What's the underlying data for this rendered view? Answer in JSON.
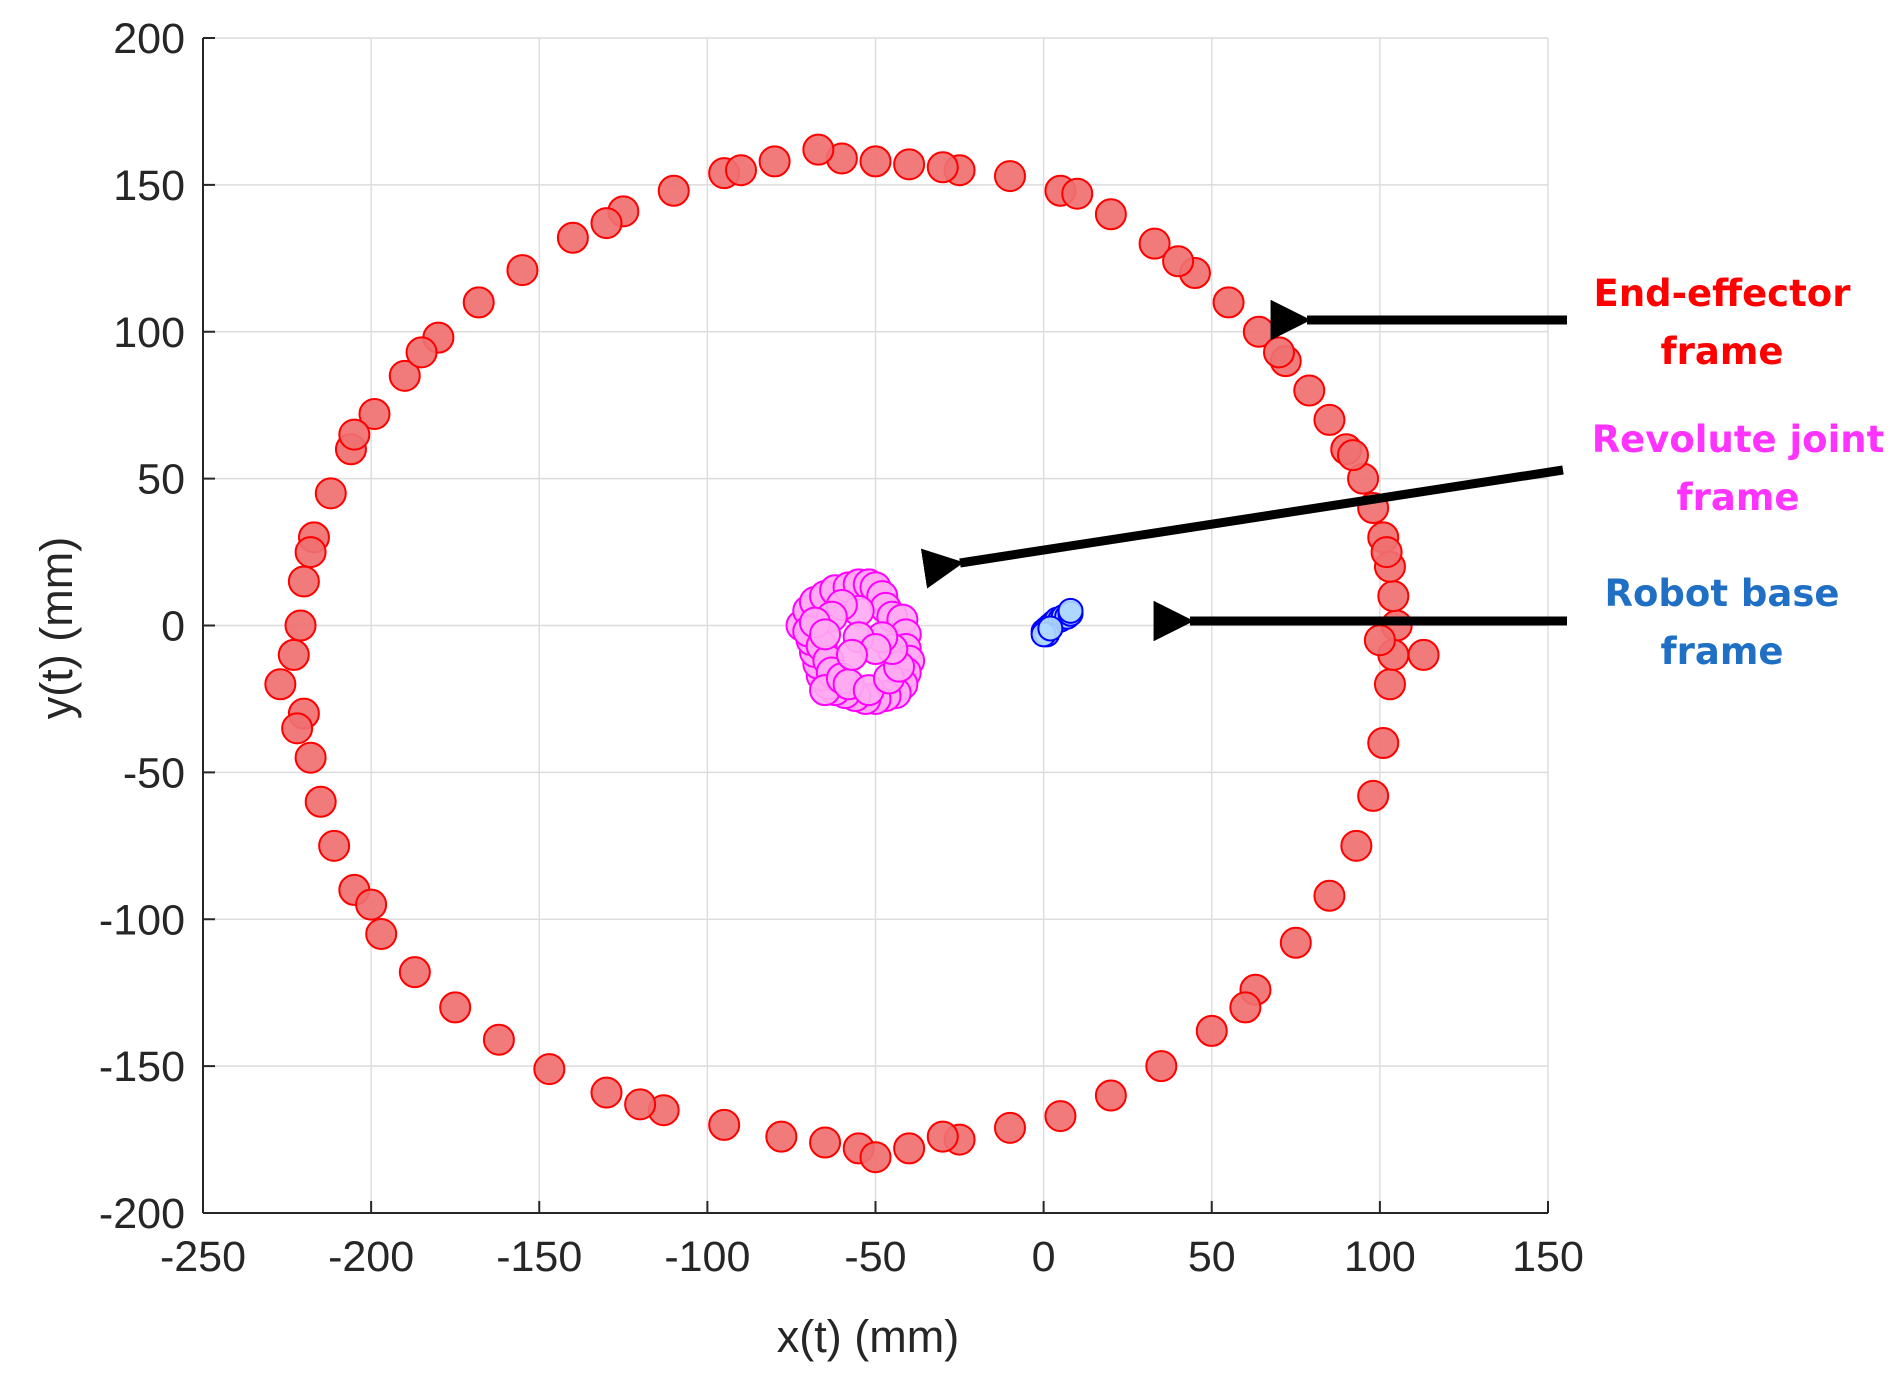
{
  "chart_data": {
    "type": "scatter",
    "title": "",
    "xlabel": "x(t) (mm)",
    "ylabel": "y(t) (mm)",
    "xlim": [
      -250,
      150
    ],
    "ylim": [
      -200,
      200
    ],
    "x_ticks": [
      "-250",
      "-200",
      "-150",
      "-100",
      "-50",
      "0",
      "50",
      "100",
      "150"
    ],
    "y_ticks": [
      "200",
      "150",
      "100",
      "50",
      "0",
      "-50",
      "-100",
      "-150",
      "-200"
    ],
    "x_tick_values": [
      -250,
      -200,
      -150,
      -100,
      -50,
      0,
      50,
      100,
      150
    ],
    "y_tick_values": [
      200,
      150,
      100,
      50,
      0,
      -50,
      -100,
      -150,
      -200
    ],
    "grid": true,
    "series": [
      {
        "key": "end_effector",
        "color": "#ff0000",
        "fill": "#f07070",
        "points": [
          [
            105,
            0
          ],
          [
            104,
            10
          ],
          [
            103,
            20
          ],
          [
            101,
            30
          ],
          [
            98,
            40
          ],
          [
            95,
            50
          ],
          [
            90,
            60
          ],
          [
            85,
            70
          ],
          [
            79,
            80
          ],
          [
            72,
            90
          ],
          [
            64,
            100
          ],
          [
            55,
            110
          ],
          [
            45,
            120
          ],
          [
            33,
            130
          ],
          [
            20,
            140
          ],
          [
            5,
            148
          ],
          [
            -10,
            153
          ],
          [
            -25,
            155
          ],
          [
            -40,
            157
          ],
          [
            -50,
            158
          ],
          [
            -60,
            159
          ],
          [
            -67,
            162
          ],
          [
            -80,
            158
          ],
          [
            -95,
            154
          ],
          [
            -110,
            148
          ],
          [
            -125,
            141
          ],
          [
            -140,
            132
          ],
          [
            -155,
            121
          ],
          [
            -168,
            110
          ],
          [
            -180,
            98
          ],
          [
            -190,
            85
          ],
          [
            -199,
            72
          ],
          [
            -206,
            60
          ],
          [
            -212,
            45
          ],
          [
            -217,
            30
          ],
          [
            -220,
            15
          ],
          [
            -221,
            0
          ],
          [
            -223,
            -10
          ],
          [
            -227,
            -20
          ],
          [
            -220,
            -30
          ],
          [
            -218,
            -45
          ],
          [
            -215,
            -60
          ],
          [
            -211,
            -75
          ],
          [
            -205,
            -90
          ],
          [
            -197,
            -105
          ],
          [
            -187,
            -118
          ],
          [
            -175,
            -130
          ],
          [
            -162,
            -141
          ],
          [
            -147,
            -151
          ],
          [
            -130,
            -159
          ],
          [
            -113,
            -165
          ],
          [
            -95,
            -170
          ],
          [
            -78,
            -174
          ],
          [
            -65,
            -176
          ],
          [
            -55,
            -178
          ],
          [
            -50,
            -181
          ],
          [
            -40,
            -178
          ],
          [
            -25,
            -175
          ],
          [
            -10,
            -171
          ],
          [
            5,
            -167
          ],
          [
            20,
            -160
          ],
          [
            35,
            -150
          ],
          [
            50,
            -138
          ],
          [
            63,
            -124
          ],
          [
            75,
            -108
          ],
          [
            85,
            -92
          ],
          [
            93,
            -75
          ],
          [
            98,
            -58
          ],
          [
            101,
            -40
          ],
          [
            103,
            -20
          ],
          [
            104,
            -10
          ],
          [
            113,
            -10
          ],
          [
            100,
            -5
          ],
          [
            60,
            -130
          ],
          [
            -30,
            -174
          ],
          [
            -120,
            -163
          ],
          [
            -200,
            -95
          ],
          [
            -222,
            -35
          ],
          [
            -218,
            25
          ],
          [
            -205,
            65
          ],
          [
            -185,
            93
          ],
          [
            -130,
            137
          ],
          [
            -90,
            155
          ],
          [
            -30,
            156
          ],
          [
            10,
            147
          ],
          [
            40,
            124
          ],
          [
            70,
            93
          ],
          [
            92,
            58
          ],
          [
            102,
            25
          ]
        ]
      },
      {
        "key": "revolute_joint",
        "color": "#ff00ff",
        "fill": "#ffaaf2",
        "points": [
          [
            -72,
            0
          ],
          [
            -70,
            5
          ],
          [
            -68,
            8
          ],
          [
            -65,
            10
          ],
          [
            -62,
            12
          ],
          [
            -58,
            13
          ],
          [
            -55,
            14
          ],
          [
            -52,
            14
          ],
          [
            -50,
            13
          ],
          [
            -48,
            10
          ],
          [
            -47,
            6
          ],
          [
            -45,
            3
          ],
          [
            -42,
            2
          ],
          [
            -41,
            -3
          ],
          [
            -41,
            -8
          ],
          [
            -40,
            -12
          ],
          [
            -41,
            -16
          ],
          [
            -42,
            -20
          ],
          [
            -44,
            -23
          ],
          [
            -47,
            -24
          ],
          [
            -50,
            -25
          ],
          [
            -53,
            -25
          ],
          [
            -56,
            -24
          ],
          [
            -59,
            -23
          ],
          [
            -62,
            -22
          ],
          [
            -64,
            -20
          ],
          [
            -66,
            -17
          ],
          [
            -67,
            -13
          ],
          [
            -68,
            -9
          ],
          [
            -69,
            -5
          ],
          [
            -70,
            -2
          ],
          [
            -66,
            -7
          ],
          [
            -64,
            -12
          ],
          [
            -63,
            -16
          ],
          [
            -65,
            -22
          ],
          [
            -60,
            -18
          ],
          [
            -58,
            -20
          ],
          [
            -52,
            -22
          ],
          [
            -46,
            -18
          ],
          [
            -43,
            -14
          ],
          [
            -45,
            -8
          ],
          [
            -48,
            -4
          ],
          [
            -55,
            5
          ],
          [
            -60,
            7
          ],
          [
            -63,
            3
          ],
          [
            -68,
            1
          ],
          [
            -65,
            -3
          ],
          [
            -55,
            -4
          ],
          [
            -50,
            -8
          ],
          [
            -57,
            -10
          ]
        ]
      },
      {
        "key": "robot_base",
        "color": "#0000ff",
        "fill": "#aed8ff",
        "points": [
          [
            0,
            -2
          ],
          [
            1,
            -1
          ],
          [
            2,
            0
          ],
          [
            3,
            1
          ],
          [
            4,
            2
          ],
          [
            5,
            2
          ],
          [
            6,
            3
          ],
          [
            7,
            3
          ],
          [
            8,
            4
          ],
          [
            1,
            -3
          ],
          [
            0,
            -3
          ],
          [
            2,
            -1
          ],
          [
            8,
            5
          ]
        ]
      }
    ]
  },
  "annotations": [
    {
      "key": "ee",
      "lines": [
        "End-effector",
        "frame"
      ],
      "color": "#ff0000"
    },
    {
      "key": "rj",
      "lines": [
        "Revolute joint",
        "frame"
      ],
      "color": "#ff33ff"
    },
    {
      "key": "rb",
      "lines": [
        "Robot base",
        "frame"
      ],
      "color": "#1f6fc5"
    }
  ]
}
